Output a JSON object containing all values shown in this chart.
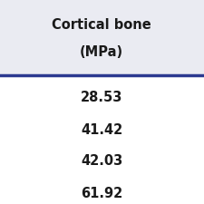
{
  "header_line1": "Cortical bone",
  "header_line2": "(MPa)",
  "values": [
    "28.53",
    "41.42",
    "42.03",
    "61.92"
  ],
  "header_bg_color": "#eaebf2",
  "data_bg_color": "#ffffff",
  "separator_color": "#2b3990",
  "text_color": "#1a1a1a",
  "header_fontsize": 10.5,
  "value_fontsize": 10.5,
  "border_color": "#c0c0c8"
}
